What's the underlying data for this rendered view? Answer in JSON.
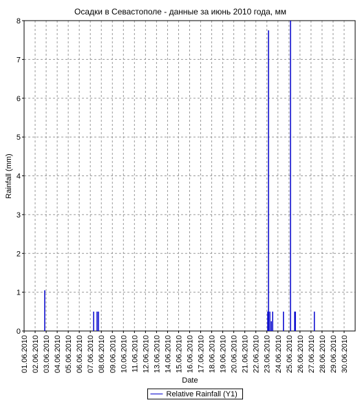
{
  "chart_data": {
    "type": "bar",
    "title": "Осадки в Севастополе - данные за июнь 2010 года, мм",
    "x_label": "Date",
    "y_label": "Rainfall (mm)",
    "x": [
      2.87,
      7.3,
      7.61,
      7.74,
      23.08,
      23.15,
      23.27,
      23.4,
      23.52,
      24.5,
      25.14,
      25.52,
      25.58,
      27.3
    ],
    "series": [
      {
        "name": "Relative Rainfall (Y1)",
        "color": "#0000cc",
        "values": [
          1.05,
          0.5,
          0.5,
          0.5,
          0.5,
          7.75,
          0.5,
          0.25,
          0.5,
          0.5,
          8,
          0.5,
          0.5,
          0.5
        ]
      }
    ],
    "xlim": [
      1,
      31
    ],
    "ylim": [
      0,
      8
    ],
    "yticks": [
      0,
      1,
      2,
      3,
      4,
      5,
      6,
      7,
      8
    ],
    "xticks": [
      {
        "value": 1,
        "label": "01.06.2010"
      },
      {
        "value": 2,
        "label": "02.06.2010"
      },
      {
        "value": 3,
        "label": "03.06.2010"
      },
      {
        "value": 4,
        "label": "04.06.2010"
      },
      {
        "value": 5,
        "label": "05.06.2010"
      },
      {
        "value": 6,
        "label": "06.06.2010"
      },
      {
        "value": 7,
        "label": "07.06.2010"
      },
      {
        "value": 8,
        "label": "08.06.2010"
      },
      {
        "value": 9,
        "label": "09.06.2010"
      },
      {
        "value": 10,
        "label": "10.06.2010"
      },
      {
        "value": 11,
        "label": "11.06.2010"
      },
      {
        "value": 12,
        "label": "12.06.2010"
      },
      {
        "value": 13,
        "label": "13.06.2010"
      },
      {
        "value": 14,
        "label": "14.06.2010"
      },
      {
        "value": 15,
        "label": "15.06.2010"
      },
      {
        "value": 16,
        "label": "16.06.2010"
      },
      {
        "value": 17,
        "label": "17.06.2010"
      },
      {
        "value": 18,
        "label": "18.06.2010"
      },
      {
        "value": 19,
        "label": "19.06.2010"
      },
      {
        "value": 20,
        "label": "20.06.2010"
      },
      {
        "value": 21,
        "label": "21.06.2010"
      },
      {
        "value": 22,
        "label": "22.06.2010"
      },
      {
        "value": 23,
        "label": "23.06.2010"
      },
      {
        "value": 24,
        "label": "24.06.2010"
      },
      {
        "value": 25,
        "label": "25.06.2010"
      },
      {
        "value": 26,
        "label": "26.06.2010"
      },
      {
        "value": 27,
        "label": "27.06.2010"
      },
      {
        "value": 28,
        "label": "28.06.2010"
      },
      {
        "value": 29,
        "label": "29.06.2010"
      },
      {
        "value": 30,
        "label": "30.06.2010"
      }
    ],
    "grid": true,
    "legend": "bottom"
  }
}
